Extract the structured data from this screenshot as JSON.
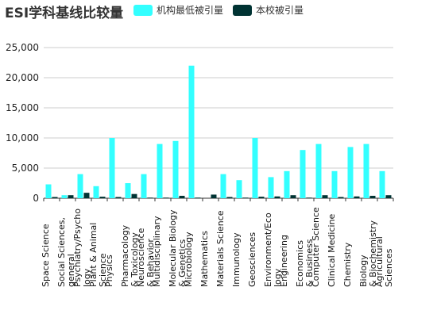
{
  "title": "ESI学科基线比较量",
  "legend": [
    {
      "label": "机构最低被引量",
      "color": "#33ffff"
    },
    {
      "label": "本校被引量",
      "color": "#003333"
    }
  ],
  "chart_data": {
    "type": "bar",
    "title": "ESI学科基线比较量",
    "ylim": [
      0,
      25000
    ],
    "yticks": [
      "0",
      "5,000",
      "10,000",
      "15,000",
      "20,000",
      "25,000"
    ],
    "grid": true,
    "legend_position": "top",
    "categories": [
      [
        "Space Science"
      ],
      [
        "Social Sciences,",
        "general"
      ],
      [
        "Psychiatry/Psycho",
        "logy"
      ],
      [
        "Plant & Animal",
        "Science"
      ],
      [
        "Physics"
      ],
      [
        "Pharmacology",
        "& Toxicology"
      ],
      [
        "Neuroscience",
        "& Behavior"
      ],
      [
        "Multidisciplinary"
      ],
      [
        "Molecular Biology",
        "& Genetics"
      ],
      [
        "Microbiology"
      ],
      [
        "Mathematics"
      ],
      [
        "Materials Science"
      ],
      [
        "Immunology"
      ],
      [
        "Geosciences"
      ],
      [
        "Environment/Eco",
        "logy"
      ],
      [
        "Engineering"
      ],
      [
        "Economics",
        "& Business"
      ],
      [
        "Computer Science"
      ],
      [
        "Clinical Medicine"
      ],
      [
        "Chemistry"
      ],
      [
        "Biology",
        "& Biochemistry"
      ],
      [
        "Agricultural",
        "Sciences"
      ]
    ],
    "series": [
      {
        "name": "机构最低被引量",
        "color": "#33ffff",
        "values": [
          2300,
          500,
          4000,
          2000,
          10000,
          2500,
          4000,
          9000,
          9500,
          22000,
          0,
          4000,
          3000,
          10000,
          3500,
          4500,
          8000,
          9000,
          4500,
          8500,
          9000,
          4500
        ]
      },
      {
        "name": "本校被引量",
        "color": "#003333",
        "values": [
          200,
          500,
          900,
          250,
          200,
          700,
          100,
          100,
          400,
          100,
          600,
          200,
          100,
          250,
          300,
          500,
          100,
          500,
          200,
          300,
          400,
          500
        ]
      }
    ]
  }
}
